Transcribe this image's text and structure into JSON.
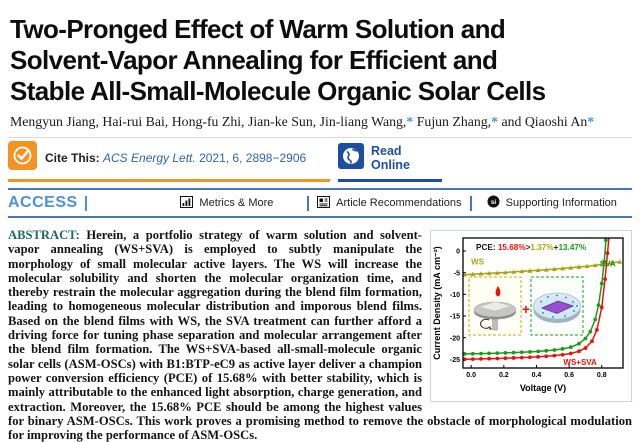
{
  "header": {
    "title_lines": [
      "Two-Pronged Effect of Warm Solution and",
      "Solvent-Vapor Annealing for Efficient and",
      "Stable All-Small-Molecule Organic Solar Cells"
    ],
    "author_segments": [
      {
        "text": "Mengyun Jiang, Hai-rui Bai, Hong-fu Zhi, Jian-ke Sun, Jin-liang Wang,"
      },
      {
        "star": "*"
      },
      {
        "text": " Fujun Zhang,"
      },
      {
        "star": "*"
      },
      {
        "text": " and Qiaoshi An"
      },
      {
        "star": "*"
      }
    ]
  },
  "cite_bar": {
    "cite_label": "Cite This:",
    "citation_journal": "ACS Energy Lett.",
    "citation_rest": " 2021, 6, 2898−2906",
    "read_online_label": "Read Online"
  },
  "access_bar": {
    "access_label": "ACCESS",
    "items": [
      {
        "label": "Metrics & More"
      },
      {
        "label": "Article Recommendations"
      },
      {
        "label": "Supporting Information"
      }
    ]
  },
  "abstract": {
    "label": "ABSTRACT:",
    "text": " Herein, a portfolio strategy of warm solution and solvent-vapor annealing (WS+SVA) is employed to subtly manipulate the morphology of small molecular active layers. The WS will increase the molecular solubility and shorten the molecular organization time, and thereby restrain the molecular aggregation during the blend film formation, leading to homogeneous molecular distribution and imporous blend films. Based on the blend films with WS, the SVA treatment can further afford a driving force for tuning phase separation and molecular arrangement after the blend film formation. The WS+SVA-based all-small-molecule organic solar cells (ASM-OSCs) with B1:BTP-eC9 as active layer deliver a champion power conversion efficiency (PCE) of 15.68% with better stability, which is mainly attributable to the enhanced light absorption, charge generation, and extraction. Moreover, the 15.68% PCE should be among the highest values for binary ASM-OSCs. This work proves a promising method to remove the obstacle of morphological modulation for improving the performance of ASM-OSCs."
  },
  "chart_data": {
    "type": "line",
    "xlabel": "Voltage (V)",
    "ylabel": "Current Density (mA cm⁻²)",
    "xlim": [
      -0.05,
      0.93
    ],
    "ylim": [
      -27,
      3
    ],
    "xticks": [
      0.0,
      0.2,
      0.4,
      0.6,
      0.8
    ],
    "yticks": [
      0,
      -5,
      -10,
      -15,
      -20,
      -25
    ],
    "grid": false,
    "annotation": {
      "prefix": "PCE: ",
      "parts": [
        {
          "text": "15.68%",
          "color": "#e8130c"
        },
        {
          "text": ">",
          "color": "#1a1a1a"
        },
        {
          "text": "1.37%",
          "color": "#a8a40a"
        },
        {
          "text": "+",
          "color": "#1a1a1a"
        },
        {
          "text": "13.47%",
          "color": "#1a9c1a"
        }
      ]
    },
    "series": [
      {
        "name": "WS",
        "color": "#a8a40a",
        "marker": "triangle",
        "label_at": [
          0.0,
          -3.1
        ],
        "label_anchor": "start",
        "points": [
          [
            -0.04,
            -5.45
          ],
          [
            0.01,
            -5.35
          ],
          [
            0.06,
            -5.25
          ],
          [
            0.11,
            -5.15
          ],
          [
            0.16,
            -5.05
          ],
          [
            0.21,
            -4.95
          ],
          [
            0.26,
            -4.82
          ],
          [
            0.31,
            -4.7
          ],
          [
            0.36,
            -4.57
          ],
          [
            0.41,
            -4.44
          ],
          [
            0.46,
            -4.31
          ],
          [
            0.51,
            -4.17
          ],
          [
            0.56,
            -4.02
          ],
          [
            0.61,
            -3.86
          ],
          [
            0.66,
            -3.68
          ],
          [
            0.71,
            -3.5
          ],
          [
            0.76,
            -3.28
          ],
          [
            0.81,
            -3.05
          ],
          [
            0.86,
            -2.78
          ],
          [
            0.91,
            -2.5
          ]
        ]
      },
      {
        "name": "SVA",
        "color": "#1a9c1a",
        "marker": "circle",
        "label_at": [
          0.885,
          -3.6
        ],
        "label_anchor": "end",
        "points": [
          [
            -0.04,
            -23.75
          ],
          [
            0.01,
            -23.72
          ],
          [
            0.06,
            -23.68
          ],
          [
            0.11,
            -23.63
          ],
          [
            0.16,
            -23.58
          ],
          [
            0.21,
            -23.52
          ],
          [
            0.26,
            -23.45
          ],
          [
            0.31,
            -23.37
          ],
          [
            0.36,
            -23.28
          ],
          [
            0.41,
            -23.17
          ],
          [
            0.46,
            -23.03
          ],
          [
            0.51,
            -22.85
          ],
          [
            0.56,
            -22.6
          ],
          [
            0.61,
            -22.2
          ],
          [
            0.66,
            -21.4
          ],
          [
            0.7,
            -20.2
          ],
          [
            0.73,
            -18.6
          ],
          [
            0.76,
            -15.8
          ],
          [
            0.78,
            -12.5
          ],
          [
            0.8,
            -7.5
          ],
          [
            0.815,
            -2.5
          ],
          [
            0.825,
            2.5
          ]
        ]
      },
      {
        "name": "WS+SVA",
        "color": "#e8130c",
        "marker": "circle",
        "label_at": [
          0.565,
          -26.35
        ],
        "label_anchor": "start",
        "points": [
          [
            -0.04,
            -25.0
          ],
          [
            0.01,
            -24.95
          ],
          [
            0.06,
            -24.9
          ],
          [
            0.11,
            -24.85
          ],
          [
            0.16,
            -24.8
          ],
          [
            0.21,
            -24.74
          ],
          [
            0.26,
            -24.68
          ],
          [
            0.31,
            -24.6
          ],
          [
            0.36,
            -24.52
          ],
          [
            0.41,
            -24.42
          ],
          [
            0.46,
            -24.3
          ],
          [
            0.51,
            -24.15
          ],
          [
            0.56,
            -23.95
          ],
          [
            0.61,
            -23.65
          ],
          [
            0.66,
            -23.15
          ],
          [
            0.7,
            -22.4
          ],
          [
            0.74,
            -20.8
          ],
          [
            0.77,
            -18.2
          ],
          [
            0.8,
            -13.0
          ],
          [
            0.82,
            -6.5
          ],
          [
            0.835,
            -0.5
          ],
          [
            0.845,
            3.5
          ]
        ]
      }
    ]
  }
}
